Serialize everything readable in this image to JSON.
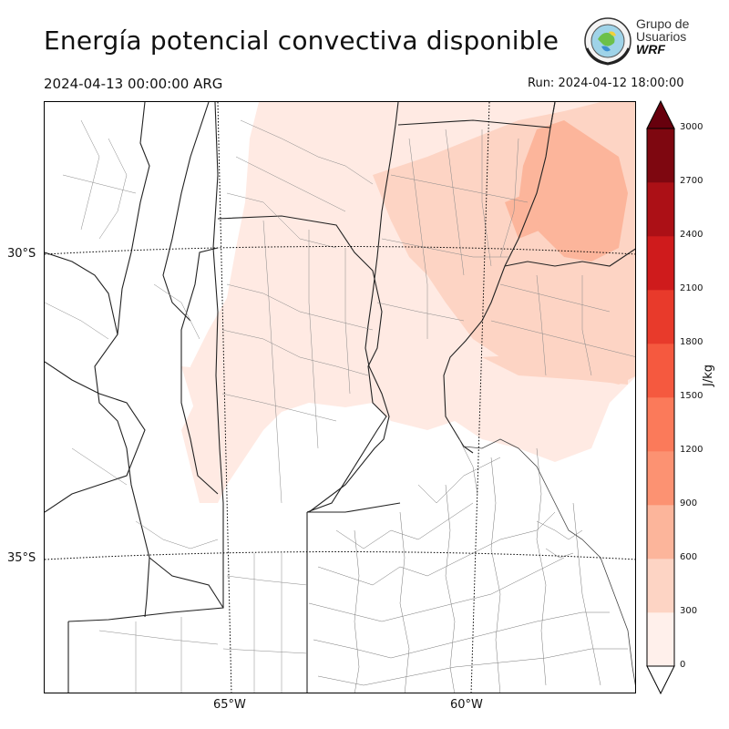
{
  "title": "Energía potencial convectiva disponible",
  "valid_time": "2024-04-13 00:00:00 ARG",
  "run_time": "Run: 2024-04-12 18:00:00",
  "logo": {
    "line1": "Grupo de",
    "line2": "Usuarios",
    "line3": "WRF"
  },
  "map": {
    "lat_labels": [
      "30°S",
      "35°S"
    ],
    "lon_labels": [
      "65°W",
      "60°W"
    ]
  },
  "colorbar": {
    "label": "J/kg",
    "ticks": [
      "3000",
      "2700",
      "2400",
      "2100",
      "1800",
      "1500",
      "1200",
      "900",
      "600",
      "300",
      "0"
    ],
    "colors": [
      "#fff0eb",
      "#fdd4c4",
      "#fcb59b",
      "#fc9272",
      "#fb7a5a",
      "#f5593f",
      "#e83a2b",
      "#cf1b1c",
      "#ac1016",
      "#7e0710"
    ],
    "extend": "both"
  }
}
